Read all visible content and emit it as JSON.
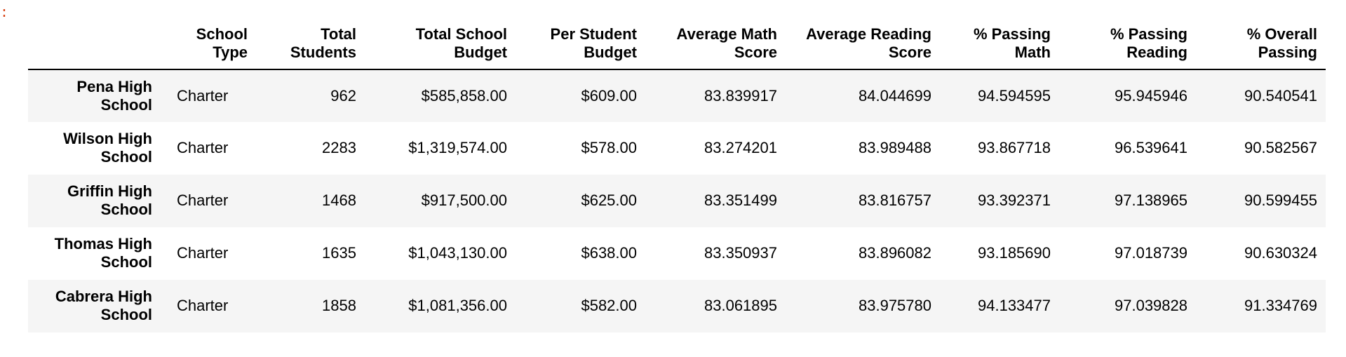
{
  "prompt": {
    "text": ":"
  },
  "table": {
    "columns": [
      "School Type",
      "Total Students",
      "Total School Budget",
      "Per Student Budget",
      "Average Math Score",
      "Average Reading Score",
      "% Passing Math",
      "% Passing Reading",
      "% Overall Passing"
    ],
    "rows": [
      {
        "index": "Pena High School",
        "cells": [
          "Charter",
          "962",
          "$585,858.00",
          "$609.00",
          "83.839917",
          "84.044699",
          "94.594595",
          "95.945946",
          "90.540541"
        ]
      },
      {
        "index": "Wilson High School",
        "cells": [
          "Charter",
          "2283",
          "$1,319,574.00",
          "$578.00",
          "83.274201",
          "83.989488",
          "93.867718",
          "96.539641",
          "90.582567"
        ]
      },
      {
        "index": "Griffin High School",
        "cells": [
          "Charter",
          "1468",
          "$917,500.00",
          "$625.00",
          "83.351499",
          "83.816757",
          "93.392371",
          "97.138965",
          "90.599455"
        ]
      },
      {
        "index": "Thomas High School",
        "cells": [
          "Charter",
          "1635",
          "$1,043,130.00",
          "$638.00",
          "83.350937",
          "83.896082",
          "93.185690",
          "97.018739",
          "90.630324"
        ]
      },
      {
        "index": "Cabrera High School",
        "cells": [
          "Charter",
          "1858",
          "$1,081,356.00",
          "$582.00",
          "83.061895",
          "83.975780",
          "94.133477",
          "97.039828",
          "91.334769"
        ]
      }
    ]
  },
  "colors": {
    "prompt": "#d84315",
    "row_stripe": "#f5f5f5",
    "text": "#000000"
  }
}
